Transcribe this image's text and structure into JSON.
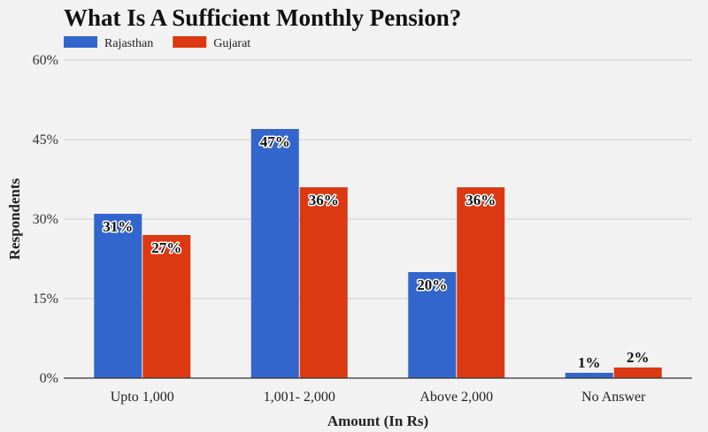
{
  "chart_data": {
    "type": "bar",
    "title": "What Is A Sufficient Monthly Pension?",
    "xlabel": "Amount (In Rs)",
    "ylabel": "Respondents",
    "categories": [
      "Upto 1,000",
      "1,001- 2,000",
      "Above 2,000",
      "No Answer"
    ],
    "series": [
      {
        "name": "Rajasthan",
        "values": [
          31,
          47,
          20,
          1
        ],
        "color": "#3366cc"
      },
      {
        "name": "Gujarat",
        "values": [
          27,
          36,
          36,
          2
        ],
        "color": "#dc3912"
      }
    ],
    "ylim": [
      0,
      60
    ],
    "yticks": [
      0,
      15,
      30,
      45,
      60
    ],
    "ytick_labels": [
      "0%",
      "15%",
      "30%",
      "45%",
      "60%"
    ],
    "data_labels": [
      [
        "31%",
        "47%",
        "20%",
        "1%"
      ],
      [
        "27%",
        "36%",
        "36%",
        "2%"
      ]
    ],
    "grid": true,
    "legend": "top-left"
  }
}
